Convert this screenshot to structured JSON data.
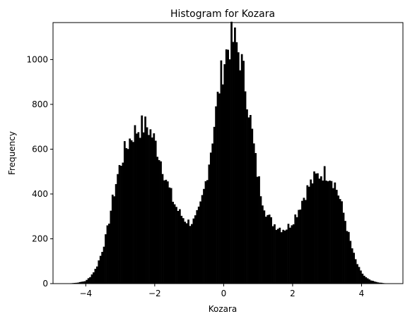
{
  "chart_data": {
    "type": "bar",
    "title": "Histogram for Kozara",
    "xlabel": "Kozara",
    "ylabel": "Frequency",
    "xlim": [
      -4.95,
      5.2
    ],
    "ylim": [
      0,
      1165
    ],
    "xticks": [
      -4,
      -2,
      0,
      2,
      4
    ],
    "xtick_labels": [
      "−4",
      "−2",
      "0",
      "2",
      "4"
    ],
    "yticks": [
      0,
      200,
      400,
      600,
      800,
      1000
    ],
    "ytick_labels": [
      "0",
      "200",
      "400",
      "600",
      "800",
      "1000"
    ],
    "grid": false,
    "legend": "none",
    "bar_color": "#000000",
    "bin_width": 0.05,
    "bin_edges": [
      -4.55,
      4.8
    ],
    "bins": [
      [
        -4.5,
        1
      ],
      [
        -4.25,
        4
      ],
      [
        -4.0,
        12
      ],
      [
        -3.85,
        35
      ],
      [
        -3.7,
        70
      ],
      [
        -3.55,
        135
      ],
      [
        -3.4,
        220
      ],
      [
        -3.25,
        350
      ],
      [
        -3.1,
        470
      ],
      [
        -2.95,
        560
      ],
      [
        -2.8,
        620
      ],
      [
        -2.65,
        665
      ],
      [
        -2.5,
        690
      ],
      [
        -2.35,
        705
      ],
      [
        -2.2,
        700
      ],
      [
        -2.05,
        655
      ],
      [
        -1.9,
        590
      ],
      [
        -1.75,
        510
      ],
      [
        -1.6,
        430
      ],
      [
        -1.45,
        365
      ],
      [
        -1.3,
        320
      ],
      [
        -1.15,
        290
      ],
      [
        -1.0,
        272
      ],
      [
        -0.85,
        280
      ],
      [
        -0.7,
        330
      ],
      [
        -0.55,
        430
      ],
      [
        -0.4,
        570
      ],
      [
        -0.25,
        740
      ],
      [
        -0.1,
        910
      ],
      [
        0.05,
        1020
      ],
      [
        0.15,
        1065
      ],
      [
        0.25,
        1090
      ],
      [
        0.35,
        1075
      ],
      [
        0.5,
        1000
      ],
      [
        0.65,
        870
      ],
      [
        0.8,
        700
      ],
      [
        0.95,
        520
      ],
      [
        1.1,
        390
      ],
      [
        1.25,
        310
      ],
      [
        1.4,
        275
      ],
      [
        1.55,
        255
      ],
      [
        1.7,
        245
      ],
      [
        1.85,
        250
      ],
      [
        2.0,
        280
      ],
      [
        2.15,
        325
      ],
      [
        2.3,
        380
      ],
      [
        2.45,
        430
      ],
      [
        2.6,
        465
      ],
      [
        2.75,
        485
      ],
      [
        2.9,
        495
      ],
      [
        3.05,
        490
      ],
      [
        3.2,
        455
      ],
      [
        3.35,
        390
      ],
      [
        3.5,
        300
      ],
      [
        3.65,
        200
      ],
      [
        3.8,
        115
      ],
      [
        3.95,
        60
      ],
      [
        4.1,
        30
      ],
      [
        4.25,
        15
      ],
      [
        4.45,
        6
      ],
      [
        4.65,
        2
      ],
      [
        4.8,
        0
      ]
    ]
  }
}
